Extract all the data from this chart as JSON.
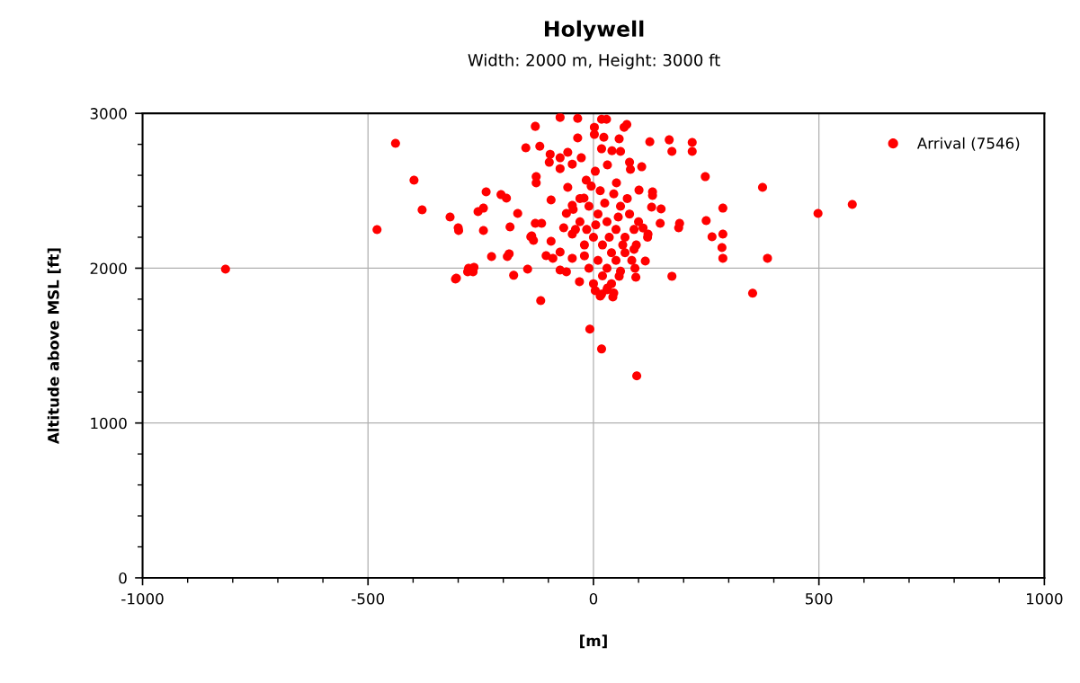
{
  "chart_data": {
    "type": "scatter",
    "title": "Holywell",
    "subtitle": "Width: 2000 m, Height: 3000 ft",
    "xlabel": "[m]",
    "ylabel": "Altitude above MSL [ft]",
    "xlim": [
      -1000,
      1000
    ],
    "xticks": [
      -1000,
      -500,
      0,
      500,
      1000
    ],
    "ylim": [
      0,
      3000
    ],
    "yticks": [
      0,
      1000,
      2000,
      3000
    ],
    "grid": true,
    "legend": "top right",
    "marker": "circle",
    "series": [
      {
        "name": "Arrival (7546)",
        "color": "#ff0000",
        "x": [
          -816,
          -439,
          -480,
          -398,
          -380,
          -318,
          -300,
          -304,
          -277,
          -265,
          -238,
          -244,
          -244,
          -226,
          -205,
          -193,
          -185,
          -191,
          -187,
          -177,
          -168,
          -150,
          -146,
          -137,
          -129,
          -127,
          -119,
          -117,
          -74,
          -35,
          -8,
          18,
          96,
          74,
          18,
          125,
          168,
          174,
          219,
          219,
          248,
          250,
          263,
          287,
          287,
          285,
          287,
          174,
          353,
          375,
          498,
          574,
          386,
          2,
          29,
          68,
          -35,
          2,
          23,
          57,
          -57,
          -96,
          -98,
          -74,
          -74,
          18,
          41,
          60,
          80,
          107,
          82,
          -47,
          -27,
          -127,
          -256,
          -299,
          -306,
          -279,
          -267,
          -57,
          -94,
          -129,
          -115,
          -139,
          -133,
          -94,
          -105,
          -90,
          -74,
          -74,
          -60,
          -31,
          18,
          43,
          92,
          94,
          115,
          131,
          131,
          150,
          191,
          189,
          -60,
          -47,
          -66,
          101,
          129,
          148,
          121,
          90,
          57,
          31,
          4,
          -47,
          -47,
          -21,
          -16,
          4,
          31,
          51,
          -30,
          -10,
          10,
          30,
          50,
          70,
          90,
          0,
          20,
          40,
          -20,
          -30,
          60,
          80,
          100,
          -40,
          10,
          30,
          50,
          -10,
          20,
          40,
          0,
          60,
          70,
          -20,
          15,
          45,
          -5,
          75,
          110,
          120,
          95,
          -45,
          25,
          5,
          35,
          55,
          65,
          85,
          -15,
          30,
          45,
          15
        ],
        "values": [
          1994,
          2806,
          2249,
          2568,
          2377,
          2330,
          2261,
          1936,
          2000,
          2006,
          2493,
          2388,
          2243,
          2075,
          2475,
          2452,
          2267,
          2075,
          2093,
          1954,
          2354,
          2777,
          1994,
          2209,
          2916,
          2591,
          2788,
          1791,
          2974,
          2968,
          1606,
          1478,
          1304,
          2928,
          2962,
          2817,
          2829,
          2754,
          2812,
          2754,
          2591,
          2307,
          2203,
          2388,
          2220,
          2133,
          2064,
          1948,
          1838,
          2522,
          2354,
          2412,
          2064,
          2910,
          2962,
          2910,
          2841,
          2864,
          2846,
          2835,
          2748,
          2736,
          2684,
          2713,
          2643,
          2771,
          2759,
          2754,
          2684,
          2655,
          2638,
          2672,
          2713,
          2551,
          2365,
          2243,
          1930,
          1977,
          1977,
          2522,
          2441,
          2290,
          2290,
          2203,
          2180,
          2174,
          2081,
          2064,
          2104,
          1988,
          1977,
          1913,
          1832,
          1814,
          2000,
          1942,
          2046,
          2493,
          2470,
          2383,
          2290,
          2261,
          2354,
          2406,
          2261,
          2504,
          2394,
          2290,
          2220,
          2122,
          1948,
          1872,
          1855,
          2064,
          2220,
          2452,
          2568,
          2626,
          2667,
          2551,
          2450,
          2400,
          2350,
          2300,
          2250,
          2200,
          2250,
          2200,
          2150,
          2100,
          2150,
          2300,
          2400,
          2350,
          2300,
          2250,
          2050,
          2000,
          2050,
          2000,
          1950,
          1900,
          1900,
          1980,
          2100,
          2080,
          2500,
          2480,
          2530,
          2450,
          2260,
          2200,
          2150,
          2380,
          2420,
          2280,
          2200,
          2330,
          2150,
          2050,
          2250,
          1860,
          1840,
          1820
        ]
      }
    ]
  }
}
